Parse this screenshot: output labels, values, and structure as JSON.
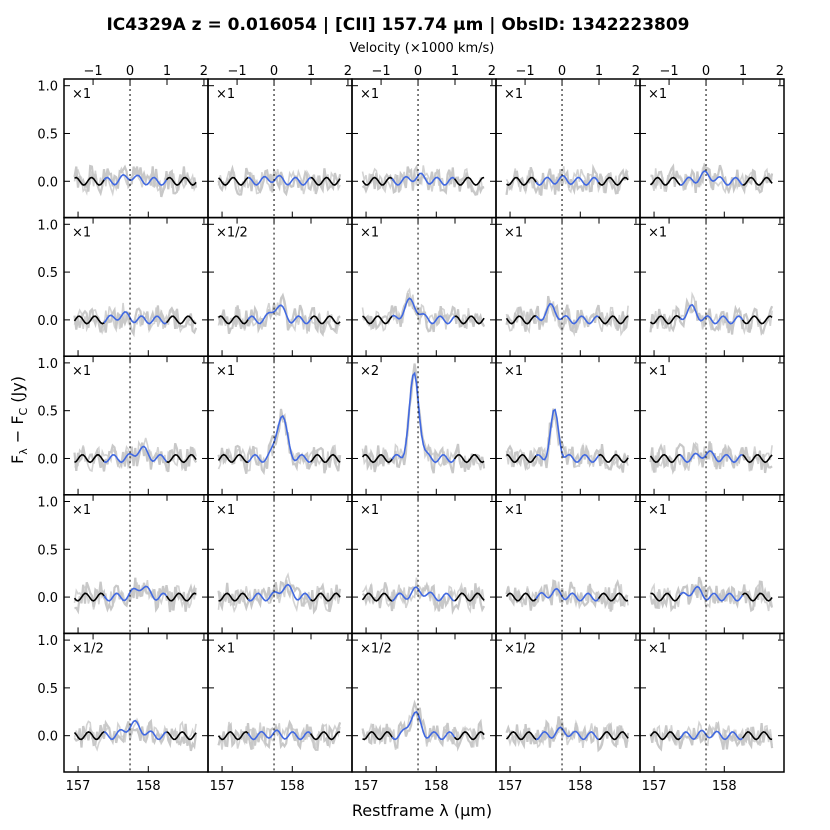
{
  "chart_data": {
    "type": "line",
    "title": "IC4329A z = 0.016054 | [CII] 157.74 µm | ObsID: 1342223809",
    "xlabel": "Restframe λ (µm)",
    "ylabel": "Fλ − FC (Jy)",
    "ylabel_main": "F",
    "ylabel_sub1": "λ",
    "ylabel_mid": " − F",
    "ylabel_sub2": "C",
    "ylabel_tail": " (Jy)",
    "top_axis_label": "Velocity (×1000 km/s)",
    "xlim": [
      156.8,
      158.85
    ],
    "ylim": [
      -0.38,
      1.07
    ],
    "top_ticks": [
      -1,
      0,
      1,
      2
    ],
    "top_tick_labels": [
      "−1",
      "0",
      "1",
      "2"
    ],
    "bottom_ticks": [
      157,
      158
    ],
    "bottom_tick_labels": [
      "157",
      "158"
    ],
    "y_ticks": [
      0.0,
      0.5,
      1.0
    ],
    "y_tick_labels": [
      "0.0",
      "0.5",
      "1.0"
    ],
    "line_center_um": 157.74,
    "grid": false,
    "colors": {
      "line_fit": "#4169e1",
      "continuum": "#000000",
      "noise": "#c8c8c8",
      "center": "#000000"
    },
    "panels": [
      {
        "scale": "×1",
        "peak": 0.05,
        "peak_v": 0.0,
        "width": 0.35,
        "seed": 1
      },
      {
        "scale": "×1",
        "peak": 0.03,
        "peak_v": 0.0,
        "width": 0.35,
        "seed": 2
      },
      {
        "scale": "×1",
        "peak": 0.05,
        "peak_v": 0.0,
        "width": 0.35,
        "seed": 3
      },
      {
        "scale": "×1",
        "peak": 0.02,
        "peak_v": 0.0,
        "width": 0.35,
        "seed": 4
      },
      {
        "scale": "×1",
        "peak": 0.07,
        "peak_v": 0.0,
        "width": 0.35,
        "seed": 5
      },
      {
        "scale": "×1",
        "peak": 0.05,
        "peak_v": -0.2,
        "width": 0.35,
        "seed": 6
      },
      {
        "scale": "×1/2",
        "peak": 0.15,
        "peak_v": 0.1,
        "width": 0.3,
        "seed": 7
      },
      {
        "scale": "×1",
        "peak": 0.19,
        "peak_v": -0.2,
        "width": 0.35,
        "seed": 8
      },
      {
        "scale": "×1",
        "peak": 0.13,
        "peak_v": -0.3,
        "width": 0.3,
        "seed": 9
      },
      {
        "scale": "×1",
        "peak": 0.12,
        "peak_v": -0.4,
        "width": 0.3,
        "seed": 10
      },
      {
        "scale": "×1",
        "peak": 0.1,
        "peak_v": 0.3,
        "width": 0.3,
        "seed": 11
      },
      {
        "scale": "×1",
        "peak": 0.45,
        "peak_v": 0.2,
        "width": 0.28,
        "seed": 12
      },
      {
        "scale": "×2",
        "peak": 0.87,
        "peak_v": -0.1,
        "width": 0.26,
        "seed": 13
      },
      {
        "scale": "×1",
        "peak": 0.48,
        "peak_v": -0.2,
        "width": 0.22,
        "seed": 14
      },
      {
        "scale": "×1",
        "peak": 0.05,
        "peak_v": 0.0,
        "width": 0.35,
        "seed": 15
      },
      {
        "scale": "×1",
        "peak": 0.11,
        "peak_v": 0.3,
        "width": 0.35,
        "seed": 16
      },
      {
        "scale": "×1",
        "peak": 0.11,
        "peak_v": 0.3,
        "width": 0.3,
        "seed": 17
      },
      {
        "scale": "×1",
        "peak": 0.07,
        "peak_v": 0.0,
        "width": 0.35,
        "seed": 18
      },
      {
        "scale": "×1",
        "peak": 0.05,
        "peak_v": -0.2,
        "width": 0.35,
        "seed": 19
      },
      {
        "scale": "×1",
        "peak": 0.08,
        "peak_v": -0.3,
        "width": 0.3,
        "seed": 20
      },
      {
        "scale": "×1/2",
        "peak": 0.12,
        "peak_v": 0.1,
        "width": 0.4,
        "seed": 21
      },
      {
        "scale": "×1",
        "peak": 0.02,
        "peak_v": 0.0,
        "width": 0.35,
        "seed": 22
      },
      {
        "scale": "×1/2",
        "peak": 0.24,
        "peak_v": -0.1,
        "width": 0.28,
        "seed": 23
      },
      {
        "scale": "×1/2",
        "peak": 0.05,
        "peak_v": 0.0,
        "width": 0.35,
        "seed": 24
      },
      {
        "scale": "×1",
        "peak": 0.02,
        "peak_v": 0.0,
        "width": 0.35,
        "seed": 25
      }
    ]
  }
}
